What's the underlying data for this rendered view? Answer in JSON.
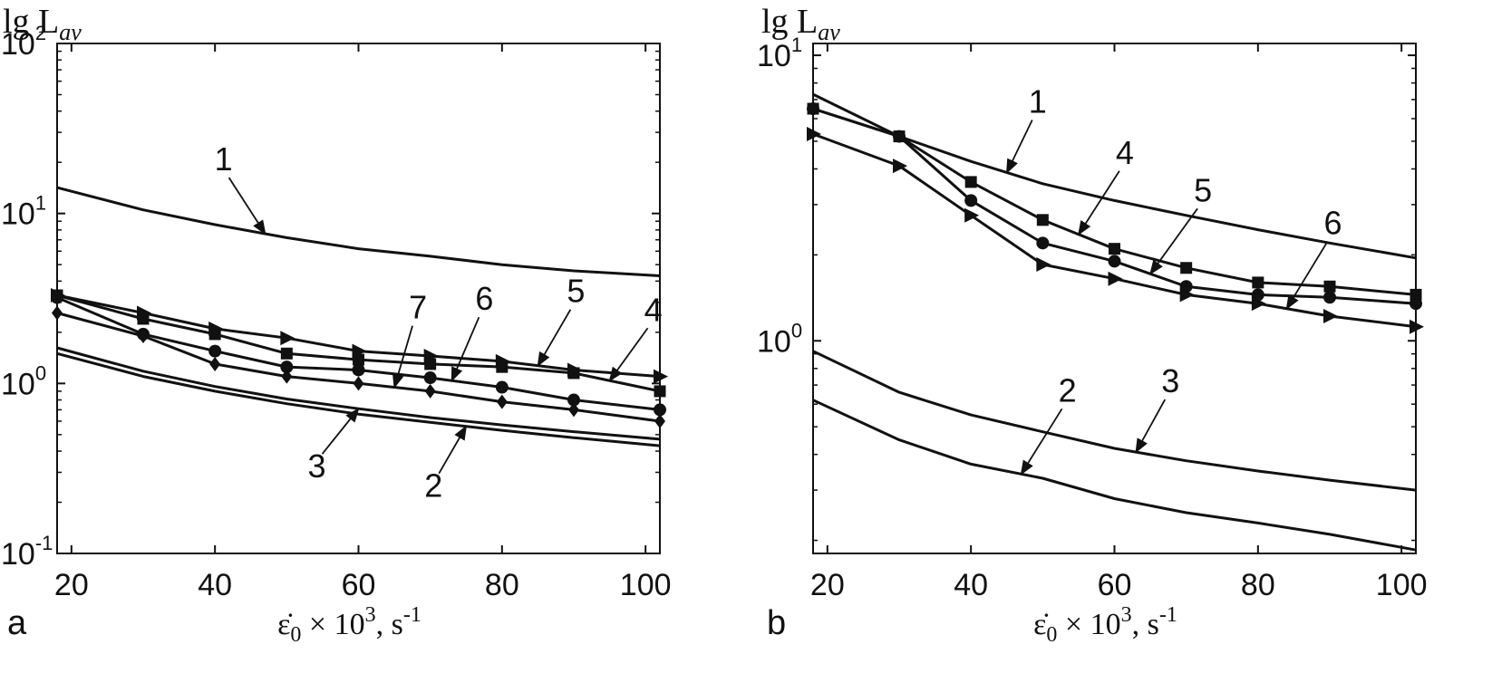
{
  "chart_data": [
    {
      "panel": "a",
      "type": "line",
      "ylabel": "lg L",
      "ylabel_sub": "av",
      "xlabel": "ε̇",
      "xlabel_sub": "0",
      "xlabel_rest": " × 10",
      "xlabel_sup": "3",
      "xlabel_unit": ", s",
      "xlabel_unit_sup": "-1",
      "yscale": "log",
      "xlim": [
        18,
        102
      ],
      "ylim": [
        0.1,
        100
      ],
      "xticks": [
        20,
        40,
        60,
        80,
        100
      ],
      "yticks": [
        {
          "value": 0.1,
          "base": "10",
          "exp": "-1"
        },
        {
          "value": 1,
          "base": "10",
          "exp": "0"
        },
        {
          "value": 10,
          "base": "10",
          "exp": "1"
        },
        {
          "value": 100,
          "base": "10",
          "exp": "2"
        }
      ],
      "series": [
        {
          "name": "1",
          "marker": "none",
          "x": [
            18,
            30,
            40,
            50,
            60,
            70,
            80,
            90,
            102
          ],
          "y": [
            14.2,
            10.5,
            8.6,
            7.2,
            6.2,
            5.6,
            5.0,
            4.6,
            4.3
          ]
        },
        {
          "name": "2",
          "marker": "none",
          "x": [
            18,
            30,
            40,
            50,
            60,
            70,
            80,
            90,
            102
          ],
          "y": [
            1.5,
            1.1,
            0.9,
            0.76,
            0.66,
            0.59,
            0.53,
            0.48,
            0.43
          ]
        },
        {
          "name": "3",
          "marker": "none",
          "x": [
            18,
            30,
            40,
            50,
            60,
            70,
            80,
            90,
            102
          ],
          "y": [
            1.62,
            1.18,
            0.96,
            0.81,
            0.71,
            0.63,
            0.57,
            0.52,
            0.47
          ]
        },
        {
          "name": "4",
          "marker": "square",
          "x": [
            18,
            30,
            40,
            50,
            60,
            70,
            80,
            90,
            102
          ],
          "y": [
            3.3,
            2.4,
            1.95,
            1.5,
            1.38,
            1.3,
            1.25,
            1.15,
            0.9
          ]
        },
        {
          "name": "5",
          "marker": "triangle-right",
          "x": [
            18,
            30,
            40,
            50,
            60,
            70,
            80,
            90,
            102
          ],
          "y": [
            3.3,
            2.6,
            2.1,
            1.85,
            1.55,
            1.45,
            1.35,
            1.2,
            1.1
          ]
        },
        {
          "name": "6",
          "marker": "circle",
          "x": [
            18,
            30,
            40,
            50,
            60,
            70,
            80,
            90,
            102
          ],
          "y": [
            3.2,
            1.95,
            1.55,
            1.25,
            1.2,
            1.08,
            0.95,
            0.8,
            0.7
          ]
        },
        {
          "name": "7",
          "marker": "diamond",
          "x": [
            18,
            30,
            40,
            50,
            60,
            70,
            80,
            90,
            102
          ],
          "y": [
            2.6,
            1.9,
            1.3,
            1.1,
            1.0,
            0.9,
            0.78,
            0.7,
            0.6
          ]
        }
      ],
      "annotations": [
        {
          "text": "1",
          "series": "1",
          "at_x": 47
        },
        {
          "text": "7",
          "series": "7",
          "at_x": 65
        },
        {
          "text": "6",
          "series": "6",
          "at_x": 73
        },
        {
          "text": "5",
          "series": "5",
          "at_x": 85
        },
        {
          "text": "4",
          "series": "4",
          "at_x": 95
        },
        {
          "text": "3",
          "series": "3",
          "at_x": 60
        },
        {
          "text": "2",
          "series": "2",
          "at_x": 75
        }
      ]
    },
    {
      "panel": "b",
      "type": "line",
      "ylabel": "lg L",
      "ylabel_sub": "av",
      "xlabel": "ε̇",
      "xlabel_sub": "0",
      "xlabel_rest": " × 10",
      "xlabel_sup": "3",
      "xlabel_unit": ", s",
      "xlabel_unit_sup": "-1",
      "yscale": "log",
      "xlim": [
        18,
        102
      ],
      "ylim": [
        0.18,
        11
      ],
      "xticks": [
        20,
        40,
        60,
        80,
        100
      ],
      "yticks": [
        {
          "value": 1,
          "base": "10",
          "exp": "0"
        },
        {
          "value": 10,
          "base": "10",
          "exp": "1"
        }
      ],
      "series": [
        {
          "name": "1",
          "marker": "none",
          "x": [
            18,
            30,
            40,
            50,
            60,
            70,
            80,
            90,
            102
          ],
          "y": [
            7.3,
            5.2,
            4.25,
            3.55,
            3.1,
            2.75,
            2.45,
            2.2,
            1.95
          ]
        },
        {
          "name": "2",
          "marker": "none",
          "x": [
            18,
            30,
            40,
            50,
            60,
            70,
            80,
            90,
            102
          ],
          "y": [
            0.62,
            0.45,
            0.37,
            0.33,
            0.28,
            0.25,
            0.23,
            0.21,
            0.185
          ]
        },
        {
          "name": "3",
          "marker": "none",
          "x": [
            18,
            30,
            40,
            50,
            60,
            70,
            80,
            90,
            102
          ],
          "y": [
            0.92,
            0.66,
            0.55,
            0.48,
            0.42,
            0.38,
            0.35,
            0.325,
            0.3
          ]
        },
        {
          "name": "4",
          "marker": "square",
          "x": [
            18,
            30,
            40,
            50,
            60,
            70,
            80,
            90,
            102
          ],
          "y": [
            6.5,
            5.2,
            3.6,
            2.65,
            2.1,
            1.8,
            1.6,
            1.55,
            1.45
          ]
        },
        {
          "name": "5",
          "marker": "circle",
          "x": [
            18,
            30,
            40,
            50,
            60,
            70,
            80,
            90,
            102
          ],
          "y": [
            6.5,
            5.2,
            3.1,
            2.2,
            1.9,
            1.55,
            1.45,
            1.42,
            1.35
          ]
        },
        {
          "name": "6",
          "marker": "triangle-right",
          "x": [
            18,
            30,
            40,
            50,
            60,
            70,
            80,
            90,
            102
          ],
          "y": [
            5.3,
            4.1,
            2.75,
            1.85,
            1.65,
            1.45,
            1.35,
            1.22,
            1.12
          ]
        }
      ],
      "annotations": [
        {
          "text": "1",
          "series": "1",
          "at_x": 45
        },
        {
          "text": "4",
          "series": "4",
          "at_x": 55
        },
        {
          "text": "5",
          "series": "5",
          "at_x": 65
        },
        {
          "text": "6",
          "series": "6",
          "at_x": 84
        },
        {
          "text": "2",
          "series": "2",
          "at_x": 47
        },
        {
          "text": "3",
          "series": "3",
          "at_x": 63
        }
      ]
    }
  ]
}
